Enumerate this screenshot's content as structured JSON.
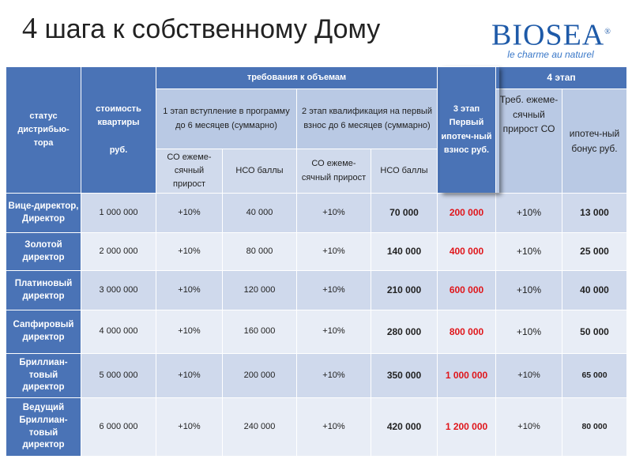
{
  "title": {
    "number": "4",
    "text": "шага к собственному Дому"
  },
  "logo": {
    "main": "BIOSEA",
    "reg": "®",
    "tagline": "le charme au naturel"
  },
  "header": {
    "status": "статус дистрибью-тора",
    "cost_line1": "стоимость квартиры",
    "cost_line2": "руб.",
    "volume_req": "требования к объемам",
    "stage1": "1 этап вступление в программу до 6 месяцев (суммарно)",
    "stage2": "2 этап квалификация на первый взнос до 6 месяцев (суммарно)",
    "stage3": "3 этап Первый ипотеч-ный взнос руб.",
    "stage4": "4 этап",
    "s4_req": "Треб. ежеме-сячный прирост СО",
    "s4_bonus": "ипотеч-ный бонус руб.",
    "co_growth": "СО ежеме-сячный прирост",
    "nco": "НСО баллы",
    "co_growth2": "СО ежеме-сячный прирост",
    "nco2": "НСО баллы"
  },
  "rows": [
    {
      "status": "Вице-директор, Директор",
      "cost": "1 000 000",
      "s1_co": "+10%",
      "s1_nco": "40 000",
      "s2_co": "+10%",
      "s2_nco": "70 000",
      "s3": "200 000",
      "s4_co": "+10%",
      "s4_bonus": "13 000"
    },
    {
      "status": "Золотой директор",
      "cost": "2 000 000",
      "s1_co": "+10%",
      "s1_nco": "80 000",
      "s2_co": "+10%",
      "s2_nco": "140 000",
      "s3": "400 000",
      "s4_co": "+10%",
      "s4_bonus": "25 000"
    },
    {
      "status": "Платиновый директор",
      "cost": "3 000 000",
      "s1_co": "+10%",
      "s1_nco": "120 000",
      "s2_co": "+10%",
      "s2_nco": "210 000",
      "s3": "600 000",
      "s4_co": "+10%",
      "s4_bonus": "40 000"
    },
    {
      "status": "Сапфировый директор",
      "cost": "4 000 000",
      "s1_co": "+10%",
      "s1_nco": "160 000",
      "s2_co": "+10%",
      "s2_nco": "280 000",
      "s3": "800 000",
      "s4_co": "+10%",
      "s4_bonus": "50 000"
    },
    {
      "status": "Бриллиан-товый директор",
      "cost": "5 000 000",
      "s1_co": "+10%",
      "s1_nco": "200 000",
      "s2_co": "+10%",
      "s2_nco": "350 000",
      "s3": "1 000 000",
      "s4_co": "+10%",
      "s4_bonus": "65 000"
    },
    {
      "status": "Ведущий Бриллиан-товый директор",
      "cost": "6 000 000",
      "s1_co": "+10%",
      "s1_nco": "240 000",
      "s2_co": "+10%",
      "s2_nco": "420 000",
      "s3": "1 200 000",
      "s4_co": "+10%",
      "s4_bonus": "80 000"
    }
  ]
}
